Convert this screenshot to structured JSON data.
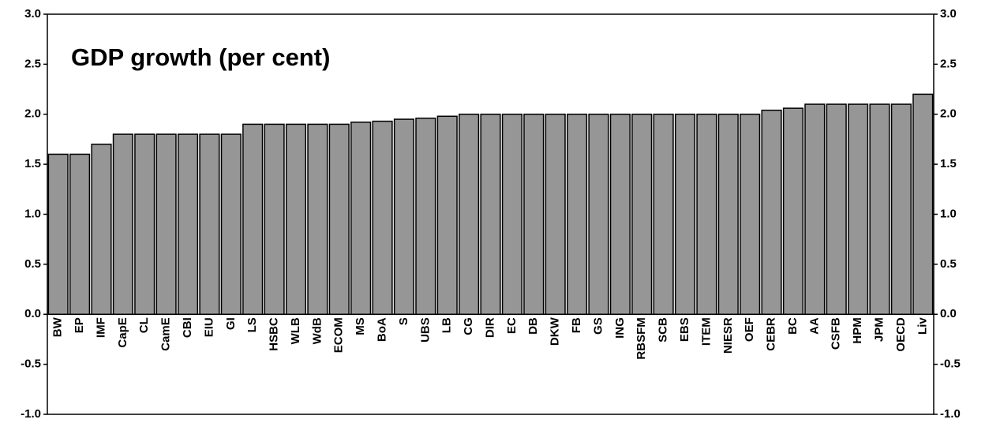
{
  "chart_data": {
    "type": "bar",
    "title": "GDP growth (per cent)",
    "categories": [
      "BW",
      "EP",
      "IMF",
      "CapE",
      "CL",
      "CamE",
      "CBI",
      "EIU",
      "GI",
      "LS",
      "HSBC",
      "WLB",
      "WdB",
      "ECOM",
      "MS",
      "BoA",
      "S",
      "UBS",
      "LB",
      "CG",
      "DIR",
      "EC",
      "DB",
      "DKW",
      "FB",
      "GS",
      "ING",
      "RBSFM",
      "SCB",
      "EBS",
      "ITEM",
      "NIESR",
      "OEF",
      "CEBR",
      "BC",
      "AA",
      "CSFB",
      "HPM",
      "JPM",
      "OECD",
      "Liv"
    ],
    "values": [
      1.6,
      1.6,
      1.7,
      1.8,
      1.8,
      1.8,
      1.8,
      1.8,
      1.8,
      1.9,
      1.9,
      1.9,
      1.9,
      1.9,
      1.92,
      1.93,
      1.95,
      1.96,
      1.98,
      2.0,
      2.0,
      2.0,
      2.0,
      2.0,
      2.0,
      2.0,
      2.0,
      2.0,
      2.0,
      2.0,
      2.0,
      2.0,
      2.0,
      2.04,
      2.06,
      2.1,
      2.1,
      2.1,
      2.1,
      2.1,
      2.2
    ],
    "color": "#969696",
    "ylim": [
      -1.0,
      3.0
    ],
    "yticks": [
      {
        "value": -1.0,
        "label": "-1.0"
      },
      {
        "value": -0.5,
        "label": "-0.5"
      },
      {
        "value": 0,
        "label": "0.0"
      },
      {
        "value": 0.5,
        "label": "0.5"
      },
      {
        "value": 1.0,
        "label": "1.0"
      },
      {
        "value": 1.5,
        "label": "1.5"
      },
      {
        "value": 2.0,
        "label": "2.0"
      },
      {
        "value": 2.5,
        "label": "2.5"
      },
      {
        "value": 3.0,
        "label": "3.0"
      }
    ],
    "grid": false
  }
}
